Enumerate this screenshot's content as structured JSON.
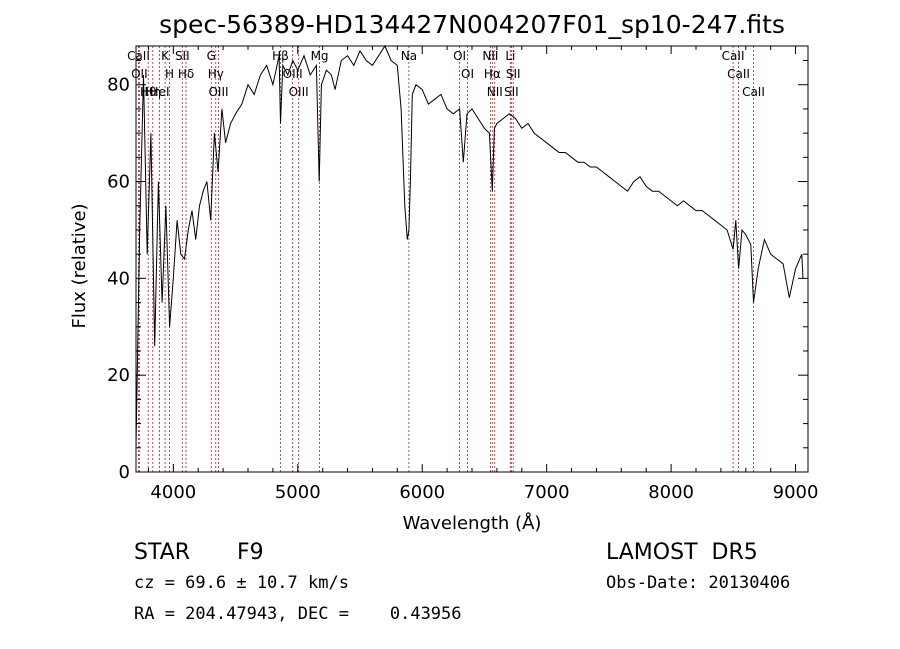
{
  "header": {
    "title": "spec-56389-HD134427N004207F01_sp10-247.fits"
  },
  "chart_data": {
    "type": "line",
    "xlabel": "Wavelength (Å)",
    "ylabel": "Flux (relative)",
    "xlim": [
      3700,
      9100
    ],
    "ylim": [
      0,
      88
    ],
    "xticks": [
      4000,
      5000,
      6000,
      7000,
      8000,
      9000
    ],
    "yticks": [
      0,
      20,
      40,
      60,
      80
    ],
    "series": [
      {
        "x": [
          3700,
          3730,
          3760,
          3790,
          3820,
          3850,
          3880,
          3910,
          3940,
          3970,
          4000,
          4030,
          4060,
          4090,
          4120,
          4150,
          4180,
          4210,
          4240,
          4270,
          4300,
          4330,
          4360,
          4390,
          4420,
          4460,
          4500,
          4550,
          4600,
          4650,
          4700,
          4750,
          4800,
          4850,
          4861,
          4880,
          4920,
          4960,
          5000,
          5050,
          5100,
          5150,
          5172,
          5190,
          5230,
          5270,
          5300,
          5350,
          5400,
          5450,
          5500,
          5550,
          5600,
          5650,
          5700,
          5750,
          5800,
          5830,
          5860,
          5880,
          5893,
          5905,
          5920,
          5950,
          6000,
          6050,
          6100,
          6150,
          6200,
          6250,
          6300,
          6330,
          6360,
          6400,
          6450,
          6500,
          6540,
          6563,
          6580,
          6600,
          6650,
          6700,
          6750,
          6800,
          6850,
          6900,
          6950,
          7000,
          7050,
          7100,
          7150,
          7200,
          7250,
          7300,
          7350,
          7400,
          7450,
          7500,
          7550,
          7600,
          7650,
          7700,
          7750,
          7800,
          7850,
          7900,
          7950,
          8000,
          8050,
          8100,
          8150,
          8200,
          8250,
          8300,
          8350,
          8400,
          8450,
          8498,
          8520,
          8542,
          8570,
          8600,
          8640,
          8662,
          8700,
          8750,
          8800,
          8850,
          8900,
          8950,
          9000,
          9050,
          9060
        ],
        "y": [
          5,
          50,
          82,
          45,
          70,
          26,
          60,
          35,
          55,
          30,
          40,
          52,
          45,
          44,
          50,
          54,
          48,
          55,
          58,
          60,
          52,
          70,
          62,
          75,
          68,
          72,
          74,
          76,
          80,
          78,
          82,
          84,
          80,
          86,
          72,
          84,
          82,
          85,
          83,
          86,
          82,
          84,
          60,
          80,
          83,
          82,
          79,
          85,
          86,
          84,
          87,
          85,
          84,
          86,
          88,
          85,
          84,
          75,
          55,
          48,
          50,
          60,
          78,
          80,
          79,
          76,
          77,
          78,
          75,
          74,
          75,
          64,
          74,
          75,
          73,
          71,
          70,
          58,
          71,
          72,
          73,
          74,
          73,
          71,
          72,
          70,
          69,
          68,
          67,
          66,
          66,
          65,
          64,
          64,
          63,
          63,
          62,
          61,
          60,
          59,
          58,
          60,
          61,
          59,
          58,
          58,
          57,
          56,
          55,
          56,
          55,
          54,
          54,
          53,
          52,
          51,
          50,
          46,
          52,
          42,
          50,
          49,
          47,
          35,
          42,
          48,
          45,
          44,
          43,
          36,
          42,
          45,
          40
        ]
      }
    ],
    "lines": [
      {
        "name": "CaII",
        "x": 3720
      },
      {
        "name": "OII",
        "x": 3727
      },
      {
        "name": "Hθ",
        "x": 3798
      },
      {
        "name": "Hη",
        "x": 3835
      },
      {
        "name": "HeI",
        "x": 3889
      },
      {
        "name": "K",
        "x": 3934
      },
      {
        "name": "H",
        "x": 3969
      },
      {
        "name": "SII",
        "x": 4072
      },
      {
        "name": "Hδ",
        "x": 4102
      },
      {
        "name": "G",
        "x": 4305
      },
      {
        "name": "Hγ",
        "x": 4341
      },
      {
        "name": "OIII",
        "x": 4363
      },
      {
        "name": "Hβ",
        "x": 4861
      },
      {
        "name": "OIII",
        "x": 4959
      },
      {
        "name": "OIII",
        "x": 5007
      },
      {
        "name": "Mg",
        "x": 5175
      },
      {
        "name": "Na",
        "x": 5893
      },
      {
        "name": "OI",
        "x": 6300
      },
      {
        "name": "OI",
        "x": 6364
      },
      {
        "name": "NII",
        "x": 6548
      },
      {
        "name": "Hα",
        "x": 6563
      },
      {
        "name": "NII",
        "x": 6583
      },
      {
        "name": "Li",
        "x": 6708
      },
      {
        "name": "SII",
        "x": 6716
      },
      {
        "name": "SII",
        "x": 6731
      },
      {
        "name": "CaII",
        "x": 8498
      },
      {
        "name": "CaII",
        "x": 8542
      },
      {
        "name": "CaII",
        "x": 8662
      }
    ]
  },
  "footer": {
    "object_class": "STAR",
    "subclass": "F9",
    "survey": "LAMOST  DR5",
    "cz": "cz = 69.6 ± 10.7 km/s",
    "obs_date": "Obs-Date: 20130406",
    "coords": "RA = 204.47943, DEC =    0.43956"
  },
  "colors": {
    "spectrum": "#000000",
    "line_markers": "#b22222"
  }
}
